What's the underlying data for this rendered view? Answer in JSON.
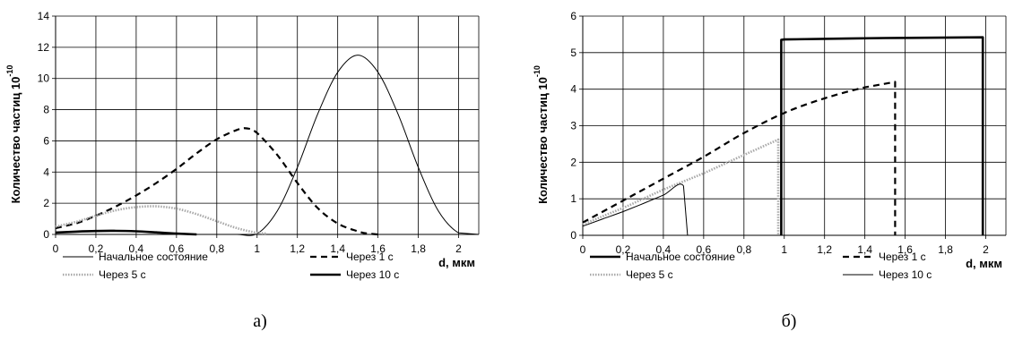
{
  "chart_data": [
    {
      "type": "line",
      "panel_label": "а)",
      "ylabel": "Количество частиц",
      "ylabel_exponent": "-10",
      "ylabel_base": "10",
      "xlabel": "d, мкм",
      "xlim": [
        0,
        2.1
      ],
      "ylim": [
        0,
        14
      ],
      "x_ticks": [
        "0",
        "0,2",
        "0,4",
        "0,6",
        "0,8",
        "1",
        "1,2",
        "1,4",
        "1,6",
        "1,8",
        "2"
      ],
      "y_ticks": [
        "0",
        "2",
        "4",
        "6",
        "8",
        "10",
        "12",
        "14"
      ],
      "grid": true,
      "legend_position": "bottom",
      "series": [
        {
          "name": "Начальное состояние",
          "style": "solid-thin",
          "color": "#000000",
          "x": [
            0,
            0.1,
            0.2,
            0.3,
            0.4,
            0.5,
            0.6,
            0.7,
            0.8,
            0.9,
            1.0,
            1.1,
            1.2,
            1.3,
            1.4,
            1.5,
            1.6,
            1.7,
            1.8,
            1.9,
            2.0,
            2.1
          ],
          "y": [
            0,
            0,
            0,
            0,
            0,
            0,
            0,
            0,
            0,
            0,
            0.05,
            1.5,
            4.3,
            7.7,
            10.4,
            11.5,
            10.4,
            7.7,
            4.3,
            1.5,
            0.1,
            0
          ]
        },
        {
          "name": "Через 1 с",
          "style": "dashed",
          "color": "#000000",
          "x": [
            0,
            0.1,
            0.2,
            0.3,
            0.4,
            0.5,
            0.6,
            0.7,
            0.8,
            0.9,
            0.95,
            1.0,
            1.1,
            1.2,
            1.3,
            1.4,
            1.5,
            1.55,
            1.6
          ],
          "y": [
            0.4,
            0.7,
            1.2,
            1.8,
            2.5,
            3.3,
            4.2,
            5.2,
            6.1,
            6.7,
            6.8,
            6.5,
            5.1,
            3.3,
            1.7,
            0.7,
            0.2,
            0.05,
            0
          ]
        },
        {
          "name": "Через 5 с",
          "style": "dotted-gray",
          "color": "#999999",
          "x": [
            0,
            0.1,
            0.2,
            0.3,
            0.4,
            0.5,
            0.6,
            0.7,
            0.8,
            0.9,
            1.0,
            1.05
          ],
          "y": [
            0.5,
            0.8,
            1.2,
            1.55,
            1.75,
            1.8,
            1.65,
            1.3,
            0.85,
            0.4,
            0.1,
            0.05
          ]
        },
        {
          "name": "Через 10 с",
          "style": "solid-thick",
          "color": "#000000",
          "x": [
            0,
            0.1,
            0.2,
            0.3,
            0.4,
            0.5,
            0.6,
            0.7
          ],
          "y": [
            0.12,
            0.18,
            0.22,
            0.23,
            0.2,
            0.13,
            0.05,
            0
          ]
        }
      ]
    },
    {
      "type": "line",
      "panel_label": "б)",
      "ylabel": "Количество частиц",
      "ylabel_exponent": "-10",
      "ylabel_base": "10",
      "xlabel": "d, мкм",
      "xlim": [
        0,
        2.1
      ],
      "ylim": [
        0,
        6
      ],
      "x_ticks": [
        "0",
        "0,2",
        "0,4",
        "0,6",
        "0,8",
        "1",
        "1,2",
        "1,4",
        "1,6",
        "1,8",
        "2"
      ],
      "y_ticks": [
        "0",
        "1",
        "2",
        "3",
        "4",
        "5",
        "6"
      ],
      "grid": true,
      "legend_position": "bottom",
      "series": [
        {
          "name": "Начальное состояние",
          "style": "solid-thick",
          "color": "#000000",
          "x": [
            0.985,
            0.985,
            1.0,
            1.5,
            1.985,
            1.985
          ],
          "y": [
            0,
            5.35,
            5.36,
            5.4,
            5.42,
            0
          ]
        },
        {
          "name": "Через 1 с",
          "style": "dashed",
          "color": "#000000",
          "x": [
            0,
            0.2,
            0.4,
            0.6,
            0.8,
            1.0,
            1.2,
            1.4,
            1.55,
            1.55
          ],
          "y": [
            0.35,
            0.95,
            1.55,
            2.15,
            2.8,
            3.35,
            3.75,
            4.05,
            4.2,
            0
          ]
        },
        {
          "name": "Через 5 с",
          "style": "dotted-gray",
          "color": "#999999",
          "x": [
            0,
            0.2,
            0.4,
            0.6,
            0.8,
            0.97,
            0.97
          ],
          "y": [
            0.3,
            0.75,
            1.25,
            1.7,
            2.2,
            2.62,
            0
          ]
        },
        {
          "name": "Через 10 с",
          "style": "solid-thin",
          "color": "#000000",
          "x": [
            0,
            0.1,
            0.2,
            0.3,
            0.4,
            0.5,
            0.52
          ],
          "y": [
            0.25,
            0.45,
            0.65,
            0.87,
            1.1,
            1.35,
            0
          ]
        }
      ]
    }
  ]
}
